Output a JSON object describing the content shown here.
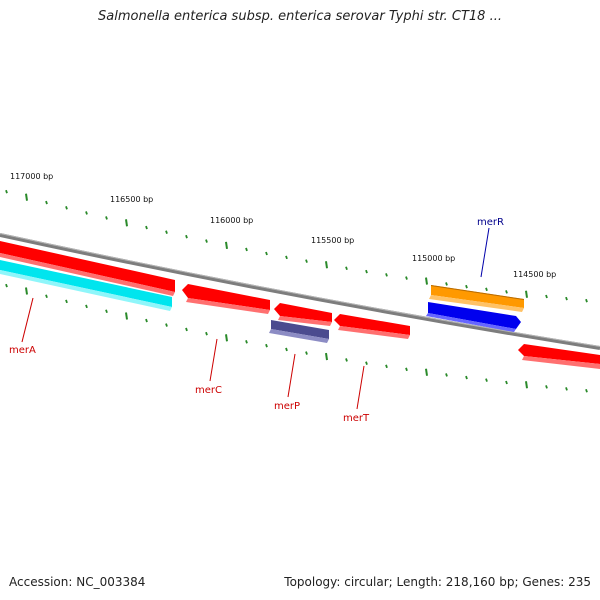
{
  "title": "Salmonella enterica subsp. enterica serovar Typhi str. CT18 ...",
  "footer": {
    "accession": "Accession: NC_003384",
    "summary": "Topology: circular; Length: 218,160 bp; Genes: 235"
  },
  "colors": {
    "backbone": "#888888",
    "tick": "#2a8a2a",
    "red_feature": "#ff0000",
    "cyan_feature": "#00e5ee",
    "orange_feature": "#ff9900",
    "blue_feature": "#0000ee",
    "purple_feature": "#4b4b8f",
    "label_red": "#cc0000",
    "label_blue": "#00008b"
  },
  "scale_labels": [
    {
      "text": "117000 bp",
      "bp": 117000
    },
    {
      "text": "116500 bp",
      "bp": 116500
    },
    {
      "text": "116000 bp",
      "bp": 116000
    },
    {
      "text": "115500 bp",
      "bp": 115500
    },
    {
      "text": "115000 bp",
      "bp": 115000
    },
    {
      "text": "114500 bp",
      "bp": 114500
    }
  ],
  "gene_labels": [
    {
      "text": "merA",
      "color": "label_red"
    },
    {
      "text": "merC",
      "color": "label_red"
    },
    {
      "text": "merP",
      "color": "label_red"
    },
    {
      "text": "merT",
      "color": "label_red"
    },
    {
      "text": "merR",
      "color": "label_blue"
    }
  ]
}
